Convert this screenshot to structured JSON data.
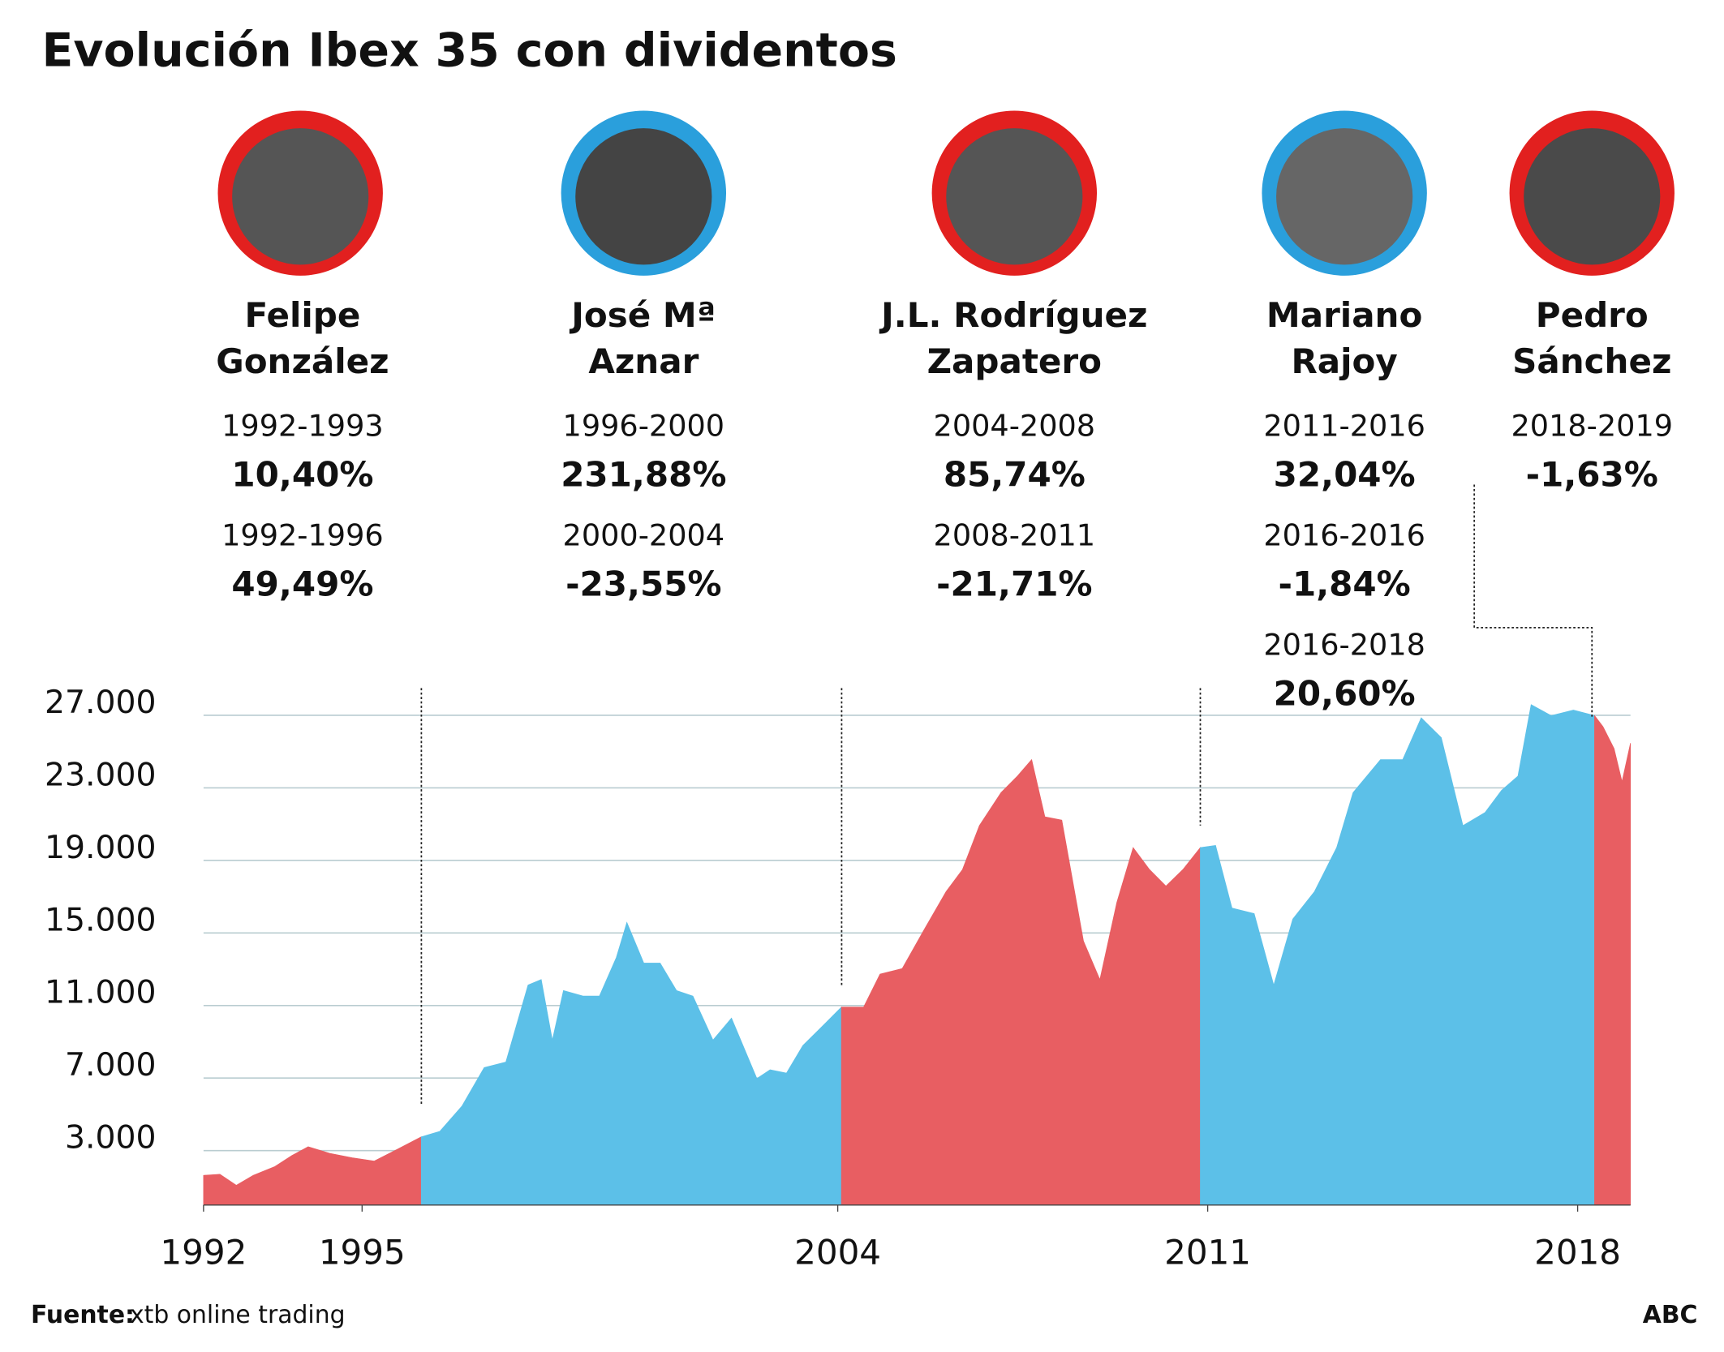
{
  "chart_data": {
    "type": "area",
    "title": "Evolución Ibex 35 con dividentos",
    "xlim": [
      1992,
      2019
    ],
    "xticks": [
      1992,
      1995,
      2004,
      2011,
      2018
    ],
    "ylim": [
      0,
      28500
    ],
    "yticks": [
      {
        "value": 3000,
        "label": "3.000"
      },
      {
        "value": 7000,
        "label": "7.000"
      },
      {
        "value": 11000,
        "label": "11.000"
      },
      {
        "value": 15000,
        "label": "15.000"
      },
      {
        "value": 19000,
        "label": "19.000"
      },
      {
        "value": 23000,
        "label": "23.000"
      },
      {
        "value": 27000,
        "label": "27.000"
      }
    ],
    "grid": true,
    "series": [
      {
        "color": "#e85e62",
        "x": [
          1992.0,
          1992.31,
          1992.62,
          1992.94,
          1993.35,
          1993.67,
          1993.98,
          1994.39,
          1994.81,
          1995.23,
          1995.64,
          1996.12
        ],
        "values": [
          1637,
          1698,
          1092,
          1637,
          2122,
          2729,
          3214,
          2850,
          2608,
          2426,
          3032,
          3760
        ]
      },
      {
        "color": "#5cc0e8",
        "x": [
          1996.12,
          1996.47,
          1996.89,
          1997.31,
          1997.72,
          1998.14,
          1998.39,
          1998.6,
          1998.81,
          1999.18,
          1999.49,
          1999.81,
          2000.01,
          2000.33,
          2000.64,
          2000.95,
          2001.26,
          2001.64,
          2001.99,
          2002.47,
          2002.72,
          2003.03,
          2003.34,
          2003.76,
          2004.07
        ],
        "values": [
          3760,
          4063,
          5458,
          7580,
          7883,
          12128,
          12431,
          9096,
          11825,
          11522,
          11522,
          13644,
          15584,
          13341,
          13341,
          11825,
          11522,
          9096,
          10309,
          6974,
          7459,
          7277,
          8793,
          10006,
          10915
        ]
      },
      {
        "color": "#e85e62",
        "x": [
          2004.07,
          2004.49,
          2004.8,
          2005.22,
          2005.63,
          2006.05,
          2006.36,
          2006.68,
          2007.09,
          2007.4,
          2007.67,
          2007.92,
          2008.24,
          2008.65,
          2008.96,
          2009.28,
          2009.59,
          2009.9,
          2010.21,
          2010.53,
          2010.86
        ],
        "values": [
          10915,
          10915,
          12734,
          13038,
          15160,
          17282,
          18495,
          20921,
          22740,
          23650,
          24559,
          21406,
          21224,
          14554,
          12431,
          16676,
          19708,
          18495,
          17586,
          18495,
          19708
        ]
      },
      {
        "color": "#5cc0e8",
        "x": [
          2010.86,
          2011.15,
          2011.46,
          2011.88,
          2012.25,
          2012.61,
          2013.02,
          2013.44,
          2013.75,
          2014.27,
          2014.69,
          2015.04,
          2015.42,
          2015.83,
          2016.25,
          2016.56,
          2016.87,
          2017.12,
          2017.5,
          2017.92,
          2018.32
        ],
        "values": [
          19708,
          19829,
          16373,
          16070,
          12128,
          15766,
          17282,
          19708,
          22740,
          24559,
          24559,
          26864,
          25772,
          20921,
          21649,
          22861,
          23650,
          27591,
          26985,
          27288,
          26985
        ]
      },
      {
        "color": "#e85e62",
        "x": [
          2018.32,
          2018.48,
          2018.69,
          2018.84,
          2019.0
        ],
        "values": [
          26985,
          26378,
          25165,
          23346,
          25469
        ]
      }
    ]
  },
  "governments": [
    {
      "name": [
        "Felipe",
        "González"
      ],
      "periods": [
        {
          "years": "1992-1993",
          "change": "10,40%"
        },
        {
          "years": "1992-1996",
          "change": "49,49%"
        }
      ]
    },
    {
      "name": [
        "José Mª",
        "Aznar"
      ],
      "periods": [
        {
          "years": "1996-2000",
          "change": "231,88%"
        },
        {
          "years": "2000-2004",
          "change": "-23,55%"
        }
      ]
    },
    {
      "name": [
        "J.L. Rodríguez",
        "Zapatero"
      ],
      "periods": [
        {
          "years": "2004-2008",
          "change": "85,74%"
        },
        {
          "years": "2008-2011",
          "change": "-21,71%"
        }
      ]
    },
    {
      "name": [
        "Mariano",
        "Rajoy"
      ],
      "periods": [
        {
          "years": "2011-2016",
          "change": "32,04%"
        },
        {
          "years": "2016-2016",
          "change": "-1,84%"
        },
        {
          "years": "2016-2018",
          "change": "20,60%"
        }
      ]
    },
    {
      "name": [
        "Pedro",
        "Sánchez"
      ],
      "periods": [
        {
          "years": "2018-2019",
          "change": "-1,63%"
        }
      ]
    }
  ],
  "footer": {
    "source_label": "Fuente:",
    "source": "xtb online trading",
    "credit": "ABC"
  }
}
